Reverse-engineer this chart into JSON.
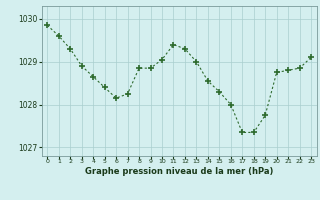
{
  "x": [
    0,
    1,
    2,
    3,
    4,
    5,
    6,
    7,
    8,
    9,
    10,
    11,
    12,
    13,
    14,
    15,
    16,
    17,
    18,
    19,
    20,
    21,
    22,
    23
  ],
  "y": [
    1029.85,
    1029.6,
    1029.3,
    1028.9,
    1028.65,
    1028.4,
    1028.15,
    1028.25,
    1028.85,
    1028.85,
    1029.05,
    1029.4,
    1029.3,
    1029.0,
    1028.55,
    1028.3,
    1028.0,
    1027.35,
    1027.35,
    1027.75,
    1028.75,
    1028.8,
    1028.85,
    1029.1
  ],
  "line_color": "#2d6a2d",
  "marker": "+",
  "marker_size": 4,
  "bg_color": "#d4efef",
  "grid_color": "#aacece",
  "axis_label_color": "#1a3a1a",
  "xlabel": "Graphe pression niveau de la mer (hPa)",
  "ylim": [
    1026.8,
    1030.3
  ],
  "yticks": [
    1027,
    1028,
    1029,
    1030
  ],
  "xlim": [
    -0.5,
    23.5
  ],
  "xticks": [
    0,
    1,
    2,
    3,
    4,
    5,
    6,
    7,
    8,
    9,
    10,
    11,
    12,
    13,
    14,
    15,
    16,
    17,
    18,
    19,
    20,
    21,
    22,
    23
  ]
}
